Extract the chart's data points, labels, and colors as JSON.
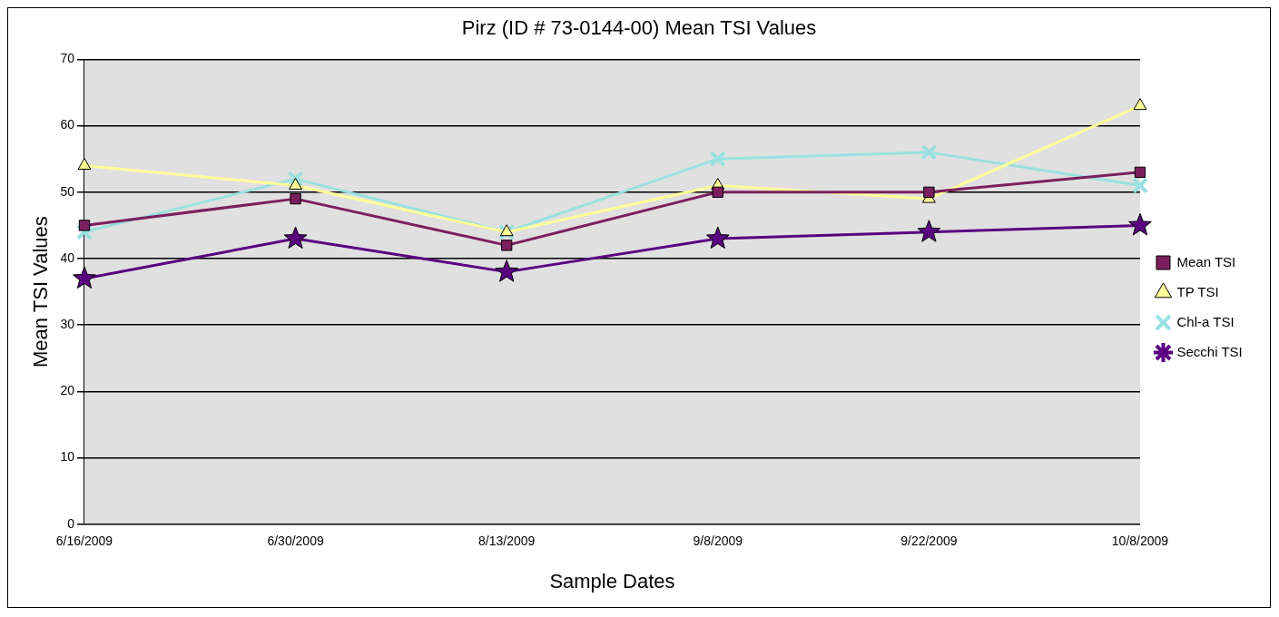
{
  "chart_data": {
    "type": "line",
    "title": "Pirz (ID # 73-0144-00) Mean TSI Values",
    "xlabel": "Sample Dates",
    "ylabel": "Mean TSI Values",
    "categories": [
      "6/16/2009",
      "6/30/2009",
      "8/13/2009",
      "9/8/2009",
      "9/22/2009",
      "10/8/2009"
    ],
    "series": [
      {
        "name": "Mean TSI",
        "color": "#7b1f5e",
        "marker": "square",
        "values": [
          45,
          49,
          42,
          50,
          50,
          53
        ]
      },
      {
        "name": "TP TSI",
        "color": "#ffff99",
        "marker": "triangle",
        "values": [
          54,
          51,
          44,
          51,
          49,
          63
        ]
      },
      {
        "name": "Chl-a TSI",
        "color": "#99e0e0",
        "marker": "cross",
        "values": [
          44,
          52,
          44,
          55,
          56,
          51
        ]
      },
      {
        "name": "Secchi TSI",
        "color": "#5a0080",
        "marker": "star",
        "values": [
          37,
          43,
          38,
          43,
          44,
          45
        ]
      }
    ],
    "ylim": [
      0,
      70
    ],
    "yticks": [
      0,
      10,
      20,
      30,
      40,
      50,
      60,
      70
    ],
    "grid": "y",
    "legend": "right",
    "line_style": "solid"
  }
}
